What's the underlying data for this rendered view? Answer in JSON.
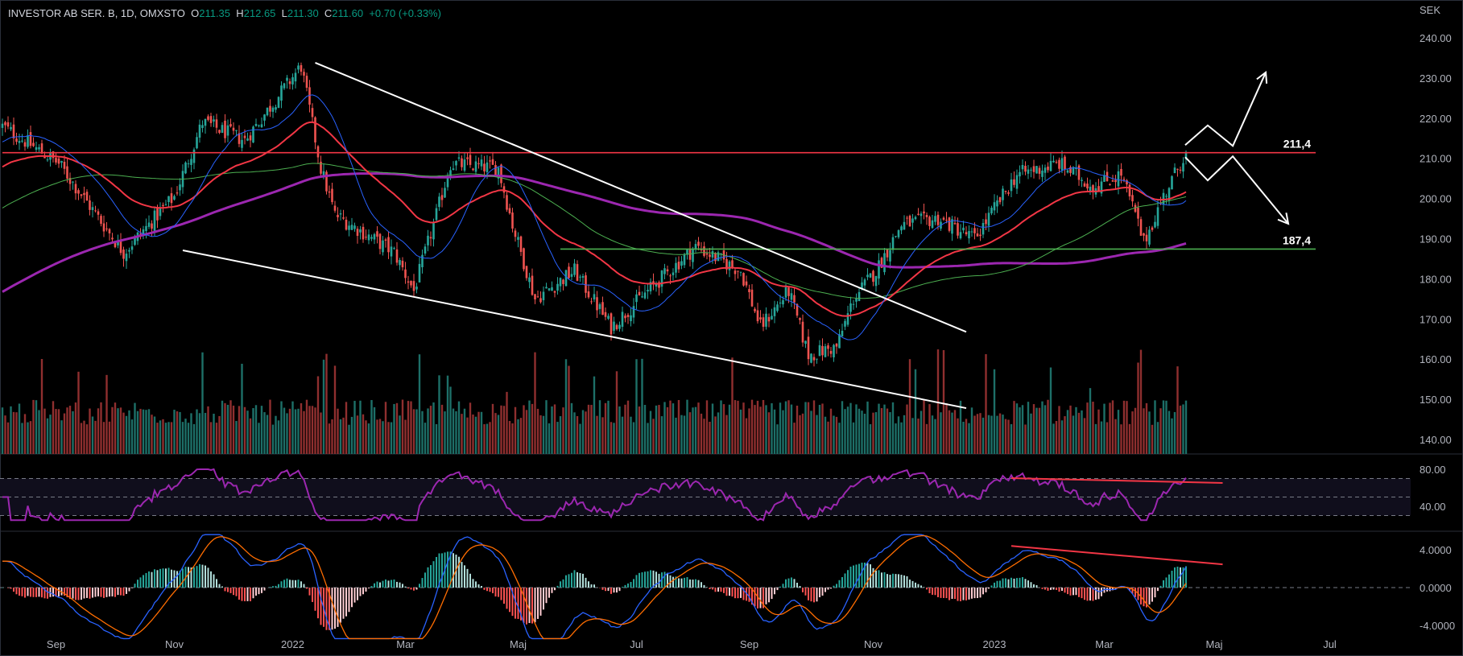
{
  "header": {
    "symbol": "INVESTOR AB SER. B, 1D, OMXSTO",
    "o_label": "O",
    "o": "211.35",
    "h_label": "H",
    "h": "212.65",
    "l_label": "L",
    "l": "211.30",
    "c_label": "C",
    "c": "211.60",
    "change": "+0.70 (+0.33%)"
  },
  "colors": {
    "up": "#26a69a",
    "down": "#ef5350",
    "sma20": "#2962ff",
    "ema50": "#f23645",
    "sma100": "#4caf50",
    "sma200": "#9c27b0",
    "rsi": "#9c27b0",
    "macd": "#2962ff",
    "signal": "#ff6d00",
    "resistance": "#f23645",
    "support": "#4caf50",
    "drawing": "#ffffff"
  },
  "chart_data": {
    "type": "candlestick",
    "title": "INVESTOR AB SER. B, 1D, OMXSTO",
    "currency": "SEK",
    "price_axis": {
      "ticks": [
        "240.00",
        "230.00",
        "220.00",
        "210.00",
        "200.00",
        "190.00",
        "180.00",
        "170.00",
        "160.00",
        "150.00",
        "140.00"
      ],
      "range": [
        140,
        240
      ]
    },
    "rsi_axis": {
      "ticks": [
        "80.00",
        "40.00"
      ],
      "bands": [
        70,
        50,
        30
      ]
    },
    "macd_axis": {
      "ticks": [
        "4.0000",
        "0.0000",
        "-4.0000"
      ]
    },
    "time_axis": [
      {
        "label": "Sep",
        "index": 19
      },
      {
        "label": "Nov",
        "index": 61
      },
      {
        "label": "2022",
        "index": 103
      },
      {
        "label": "Mar",
        "index": 143
      },
      {
        "label": "Maj",
        "index": 183
      },
      {
        "label": "Jul",
        "index": 225
      },
      {
        "label": "Sep",
        "index": 265
      },
      {
        "label": "Nov",
        "index": 309
      },
      {
        "label": "2023",
        "index": 352
      },
      {
        "label": "Mar",
        "index": 391
      },
      {
        "label": "Maj",
        "index": 430
      },
      {
        "label": "Jul",
        "index": 471
      }
    ],
    "close_waypoints": [
      [
        0,
        218
      ],
      [
        20,
        208.7
      ],
      [
        43,
        186.6
      ],
      [
        61,
        200.5
      ],
      [
        71,
        219
      ],
      [
        86,
        214.5
      ],
      [
        106,
        233
      ],
      [
        113,
        207.5
      ],
      [
        118,
        196
      ],
      [
        139,
        186.6
      ],
      [
        146,
        177
      ],
      [
        154,
        196
      ],
      [
        159,
        208.7
      ],
      [
        176,
        207.5
      ],
      [
        181,
        193.5
      ],
      [
        189,
        175
      ],
      [
        203,
        182
      ],
      [
        216,
        168
      ],
      [
        229,
        177
      ],
      [
        246,
        188
      ],
      [
        262,
        182
      ],
      [
        269,
        168
      ],
      [
        279,
        177
      ],
      [
        286,
        161
      ],
      [
        296,
        163
      ],
      [
        302,
        175
      ],
      [
        310,
        182
      ],
      [
        319,
        193.5
      ],
      [
        332,
        195
      ],
      [
        345,
        190
      ],
      [
        360,
        206
      ],
      [
        375,
        208.7
      ],
      [
        387,
        203
      ],
      [
        397,
        206
      ],
      [
        402,
        196
      ],
      [
        405,
        189
      ],
      [
        412,
        200.5
      ],
      [
        420,
        211.6
      ]
    ],
    "levels": [
      {
        "label": "211,4",
        "price": 211.4,
        "from_index": 0,
        "to_index": 466,
        "color": "resistance"
      },
      {
        "label": "187,4",
        "price": 187.4,
        "from_index": 198,
        "to_index": 466,
        "color": "support"
      }
    ],
    "trendlines": [
      {
        "from": [
          111,
          233.8
        ],
        "to": [
          342,
          166.8
        ]
      },
      {
        "from": [
          64,
          187.1
        ],
        "to": [
          342,
          147.8
        ]
      }
    ],
    "scenarios": [
      {
        "name": "bullish",
        "points": [
          [
            419.7,
            213.3
          ],
          [
            427.7,
            218.2
          ],
          [
            436.6,
            213.1
          ],
          [
            448.3,
            231.4
          ]
        ]
      },
      {
        "name": "bearish",
        "points": [
          [
            419.7,
            210.3
          ],
          [
            427.7,
            204.5
          ],
          [
            436.6,
            210.5
          ],
          [
            456.3,
            193.7
          ]
        ]
      }
    ],
    "rsi_divergence": {
      "from": [
        358,
        70.4
      ],
      "to": [
        433,
        65.2
      ]
    },
    "macd_divergence": {
      "from": [
        358,
        4.4
      ],
      "to": [
        433,
        2.46
      ]
    },
    "last_close": 211.6
  }
}
